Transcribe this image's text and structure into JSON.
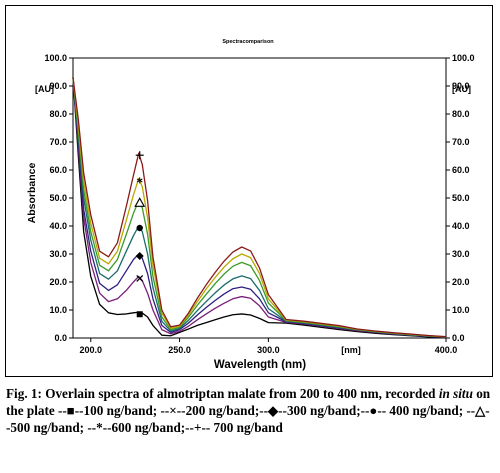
{
  "chart_data": {
    "type": "line",
    "title": "Spectracomparison",
    "xlabel": "Wavelength (nm)",
    "ylabel": "Absorbance",
    "xlim": [
      190,
      400
    ],
    "ylim": [
      0,
      100
    ],
    "grid": false,
    "y_unit_label_left": "[AU]",
    "y_unit_label_right": "[AU]",
    "x_unit_label": "[nm]",
    "x_ticks": [
      "200.0",
      "250.0",
      "300.0",
      "400.0"
    ],
    "y_ticks": [
      "0.0",
      "10.0",
      "20.0",
      "30.0",
      "40.0",
      "50.0",
      "60.0",
      "70.0",
      "80.0",
      "90.0",
      "100.0"
    ],
    "x": [
      190,
      193,
      196,
      200,
      205,
      210,
      215,
      220,
      224,
      227,
      229,
      232,
      235,
      240,
      245,
      250,
      255,
      260,
      265,
      270,
      275,
      280,
      285,
      290,
      295,
      300,
      310,
      320,
      330,
      340,
      350,
      360,
      370,
      380,
      390,
      400
    ],
    "series": [
      {
        "name": "100 ng/band",
        "marker": "square",
        "color": "#000000",
        "values": [
          93,
          65,
          38,
          22,
          12,
          9,
          8.4,
          8.6,
          9.0,
          9.2,
          8.9,
          7.5,
          4.5,
          1.0,
          0.8,
          2.0,
          3.2,
          4.5,
          5.5,
          6.5,
          7.5,
          8.3,
          8.6,
          8.2,
          7.0,
          5.5,
          5.3,
          4.6,
          3.8,
          3.0,
          2.3,
          1.7,
          1.2,
          0.8,
          0.4,
          0.2
        ]
      },
      {
        "name": "200 ng/band",
        "marker": "x",
        "color": "#7a1f7a",
        "values": [
          93,
          68,
          43,
          27,
          16,
          13,
          14,
          17,
          20,
          22,
          20.5,
          16,
          10,
          3,
          1.5,
          2.4,
          4.2,
          6.5,
          8.6,
          10.6,
          12.4,
          14.0,
          14.8,
          14.2,
          11.5,
          7.5,
          5.6,
          5.0,
          4.2,
          3.4,
          2.6,
          2.0,
          1.4,
          1.0,
          0.6,
          0.3
        ]
      },
      {
        "name": "300 ng/band",
        "marker": "diamond",
        "color": "#2d2080",
        "values": [
          93,
          70,
          46,
          31,
          19.5,
          17,
          19,
          24,
          28,
          30,
          28.5,
          23,
          14,
          4.5,
          2.0,
          3.0,
          5.3,
          8.2,
          10.9,
          13.4,
          15.7,
          17.6,
          18.2,
          17.4,
          14.0,
          9.0,
          5.8,
          5.2,
          4.4,
          3.6,
          2.8,
          2.1,
          1.5,
          1.0,
          0.6,
          0.3
        ]
      },
      {
        "name": "400 ng/band",
        "marker": "circle",
        "color": "#1a6b6b",
        "values": [
          93,
          72,
          50,
          35,
          23,
          21,
          24,
          31,
          36.5,
          40,
          38,
          30,
          18,
          6,
          2.5,
          3.4,
          6.3,
          9.8,
          13.0,
          16.1,
          18.9,
          21.1,
          22.2,
          21.2,
          17.0,
          10.5,
          6.0,
          5.4,
          4.6,
          3.8,
          2.9,
          2.2,
          1.6,
          1.1,
          0.7,
          0.4
        ]
      },
      {
        "name": "500 ng/band",
        "marker": "triangle",
        "color": "#3a9a2a",
        "values": [
          93,
          74,
          53,
          38,
          26,
          24,
          28,
          37,
          44.5,
          49,
          46.5,
          37,
          22,
          7.5,
          3.0,
          3.8,
          7.4,
          11.7,
          15.6,
          19.4,
          22.8,
          25.6,
          27.0,
          25.8,
          20.5,
          12.5,
          6.2,
          5.6,
          4.8,
          4.0,
          3.0,
          2.3,
          1.7,
          1.2,
          0.8,
          0.4
        ]
      },
      {
        "name": "600 ng/band",
        "marker": "asterisk",
        "color": "#b8a800",
        "values": [
          93,
          76,
          56,
          41,
          28.5,
          26.5,
          31,
          42,
          51,
          57,
          54,
          43,
          26,
          9,
          3.5,
          4.2,
          8.2,
          13.0,
          17.5,
          21.6,
          25.3,
          28.3,
          30.0,
          28.7,
          23.0,
          14.0,
          6.4,
          5.8,
          5.0,
          4.2,
          3.1,
          2.4,
          1.8,
          1.3,
          0.8,
          0.4
        ]
      },
      {
        "name": "700 ng/band",
        "marker": "plus",
        "color": "#8a1a1a",
        "values": [
          93,
          78,
          59,
          44,
          31,
          29,
          34,
          47,
          58,
          66,
          62,
          49,
          29,
          10,
          4.0,
          4.6,
          8.9,
          14.2,
          19.0,
          23.4,
          27.4,
          30.7,
          32.5,
          31.1,
          25.0,
          15.5,
          6.6,
          6.0,
          5.2,
          4.4,
          3.2,
          2.5,
          1.9,
          1.4,
          0.9,
          0.5
        ]
      }
    ]
  },
  "caption": {
    "fig_label": "Fig. 1:",
    "text_1": "Overlain spectra of almotriptan malate from 200 to 400 nm, recorded",
    "italic": "in situ",
    "text_2": "on the plate --■--100 ng/band; --×--200 ng/band;--◆--300 ng/band;--●-- 400 ng/band; --△--500 ng/band; --*--600 ng/band;--+-- 700 ng/band"
  }
}
